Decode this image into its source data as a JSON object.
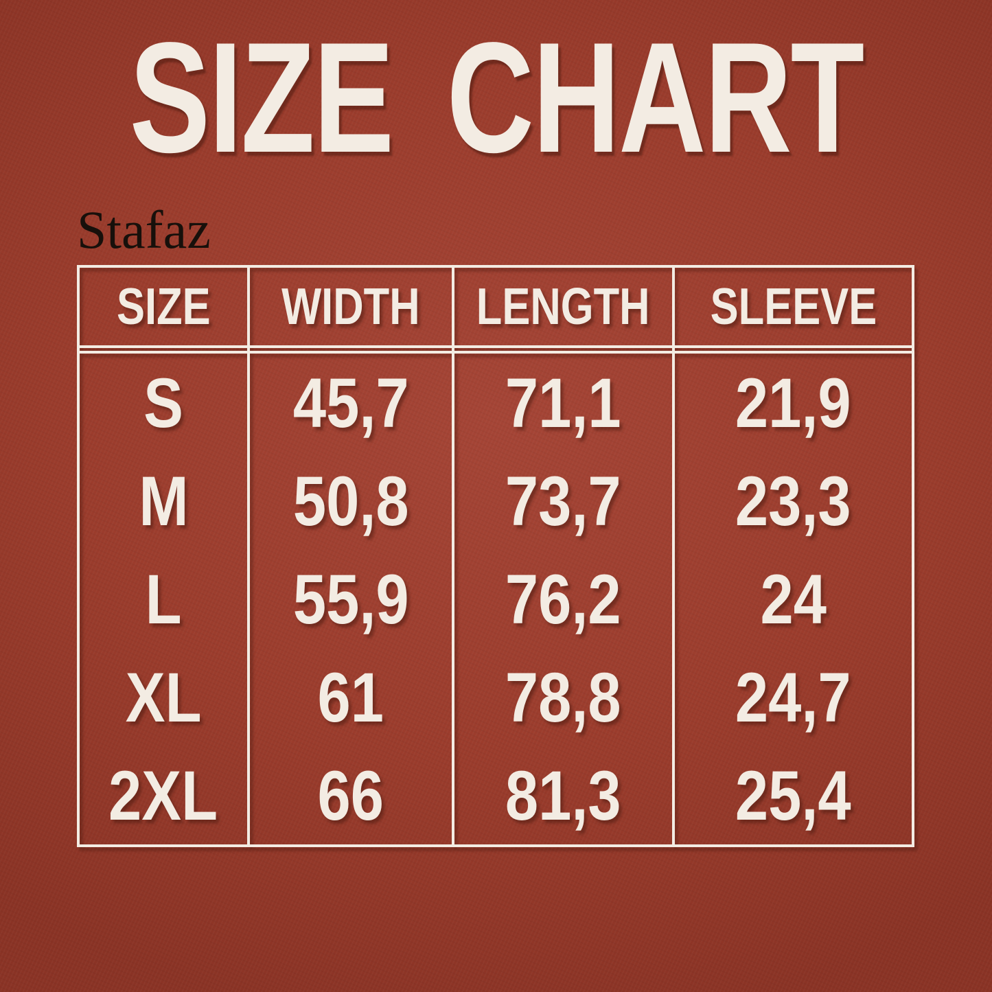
{
  "page": {
    "title": "SIZE CHART",
    "brand": "Stafaz"
  },
  "colors": {
    "background": "#9b3c2c",
    "background_light": "#a54536",
    "background_dark": "#8a3325",
    "table_border": "#f3ece3",
    "text_cream": "#f3ece3",
    "brand_text": "#17100b",
    "emboss_shadow": "rgba(72,24,14,0.5)"
  },
  "chart_data": {
    "type": "table",
    "title": "SIZE CHART",
    "brand": "Stafaz",
    "columns": [
      "SIZE",
      "WIDTH",
      "LENGTH",
      "SLEEVE"
    ],
    "rows": [
      [
        "S",
        "45,7",
        "71,1",
        "21,9"
      ],
      [
        "M",
        "50,8",
        "73,7",
        "23,3"
      ],
      [
        "L",
        "55,9",
        "76,2",
        "24"
      ],
      [
        "XL",
        "61",
        "78,8",
        "24,7"
      ],
      [
        "2XL",
        "66",
        "81,3",
        "25,4"
      ]
    ],
    "layout_hints": {
      "header_divider": "double-line",
      "body_row_separators": "none",
      "column_separators": "single-line",
      "decimal_separator": "comma"
    }
  }
}
